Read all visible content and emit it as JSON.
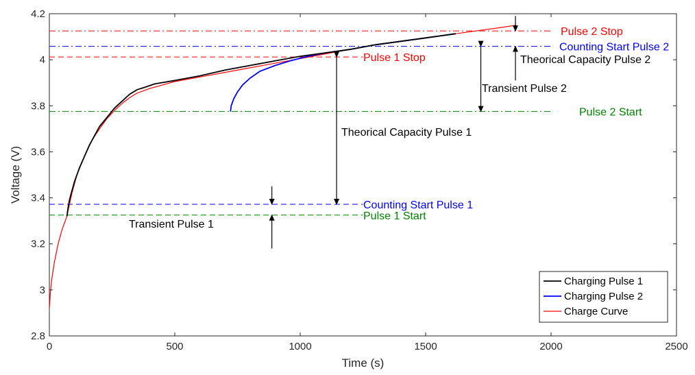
{
  "chart_data": {
    "type": "line",
    "xlabel": "Time (s)",
    "ylabel": "Voltage (V)",
    "xlim": [
      0,
      2500
    ],
    "ylim": [
      2.8,
      4.2
    ],
    "x_ticks": [
      "0",
      "500",
      "1000",
      "1500",
      "2000",
      "2500"
    ],
    "y_ticks": [
      "2.8",
      "3",
      "3.2",
      "3.4",
      "3.6",
      "3.8",
      "4",
      "4.2"
    ],
    "grid": false,
    "legend_position": "bottom-right",
    "colors": {
      "pulse1": "#000000",
      "pulse2": "#0000ff",
      "charge": "#ff0000",
      "green": "#008000",
      "blue": "#0000ff",
      "red": "#ff0000"
    },
    "series": [
      {
        "name": "Charging Pulse 1",
        "color": "#000000",
        "points": [
          [
            70,
            3.32
          ],
          [
            75,
            3.36
          ],
          [
            80,
            3.39
          ],
          [
            90,
            3.43
          ],
          [
            100,
            3.47
          ],
          [
            120,
            3.53
          ],
          [
            140,
            3.58
          ],
          [
            160,
            3.63
          ],
          [
            180,
            3.67
          ],
          [
            200,
            3.71
          ],
          [
            230,
            3.75
          ],
          [
            260,
            3.79
          ],
          [
            290,
            3.82
          ],
          [
            320,
            3.85
          ],
          [
            350,
            3.87
          ],
          [
            380,
            3.88
          ],
          [
            420,
            3.895
          ],
          [
            500,
            3.91
          ],
          [
            600,
            3.93
          ],
          [
            700,
            3.955
          ],
          [
            800,
            3.975
          ],
          [
            900,
            3.995
          ],
          [
            1000,
            4.015
          ],
          [
            1100,
            4.03
          ],
          [
            1200,
            4.045
          ],
          [
            1300,
            4.065
          ],
          [
            1400,
            4.08
          ],
          [
            1500,
            4.095
          ],
          [
            1600,
            4.11
          ],
          [
            1620,
            4.113
          ]
        ]
      },
      {
        "name": "Charging Pulse 2",
        "color": "#0000ff",
        "points": [
          [
            722,
            3.775
          ],
          [
            725,
            3.8
          ],
          [
            735,
            3.83
          ],
          [
            750,
            3.86
          ],
          [
            770,
            3.89
          ],
          [
            800,
            3.92
          ],
          [
            840,
            3.95
          ],
          [
            900,
            3.975
          ],
          [
            960,
            3.995
          ],
          [
            1030,
            4.015
          ],
          [
            1100,
            4.03
          ],
          [
            1200,
            4.045
          ],
          [
            1300,
            4.065
          ],
          [
            1400,
            4.08
          ],
          [
            1500,
            4.095
          ],
          [
            1600,
            4.11
          ],
          [
            1620,
            4.113
          ]
        ]
      },
      {
        "name": "Charge Curve",
        "color": "#ff0000",
        "points": [
          [
            0,
            2.92
          ],
          [
            5,
            3.0
          ],
          [
            10,
            3.05
          ],
          [
            20,
            3.12
          ],
          [
            35,
            3.2
          ],
          [
            50,
            3.26
          ],
          [
            70,
            3.32
          ],
          [
            90,
            3.42
          ],
          [
            110,
            3.5
          ],
          [
            140,
            3.58
          ],
          [
            170,
            3.65
          ],
          [
            200,
            3.7
          ],
          [
            230,
            3.745
          ],
          [
            260,
            3.78
          ],
          [
            290,
            3.81
          ],
          [
            320,
            3.835
          ],
          [
            350,
            3.855
          ],
          [
            400,
            3.875
          ],
          [
            450,
            3.89
          ],
          [
            500,
            3.905
          ],
          [
            600,
            3.925
          ],
          [
            700,
            3.945
          ],
          [
            800,
            3.965
          ],
          [
            900,
            3.985
          ],
          [
            1000,
            4.005
          ],
          [
            1100,
            4.025
          ],
          [
            1200,
            4.045
          ],
          [
            1300,
            4.065
          ],
          [
            1400,
            4.08
          ],
          [
            1500,
            4.095
          ],
          [
            1600,
            4.11
          ],
          [
            1700,
            4.125
          ],
          [
            1800,
            4.14
          ],
          [
            1860,
            4.15
          ]
        ]
      }
    ],
    "reference_lines": [
      {
        "label": "Pulse 2 Stop",
        "y": 4.125,
        "x0": 0,
        "x1": 2000,
        "color": "#ff0000",
        "style": "dashdot"
      },
      {
        "label": "Counting Start Pulse 2",
        "y": 4.058,
        "x0": 0,
        "x1": 2000,
        "color": "#0000ff",
        "style": "dashdot"
      },
      {
        "label": "Pulse 1 Stop",
        "y": 4.012,
        "x0": 0,
        "x1": 1250,
        "color": "#ff0000",
        "style": "dash"
      },
      {
        "label": "Pulse 2 Start",
        "y": 3.775,
        "x0": 0,
        "x1": 2000,
        "color": "#008000",
        "style": "dashdot"
      },
      {
        "label": "Counting Start Pulse 1",
        "y": 3.372,
        "x0": 0,
        "x1": 1250,
        "color": "#0000ff",
        "style": "dash"
      },
      {
        "label": "Pulse 1 Start",
        "y": 3.325,
        "x0": 0,
        "x1": 1250,
        "color": "#008000",
        "style": "dash"
      }
    ],
    "annotations": [
      {
        "label": "Theorical Capacity Pulse 1",
        "color": "#000000"
      },
      {
        "label": "Transient Pulse 1",
        "color": "#000000"
      },
      {
        "label": "Theorical Capacity Pulse 2",
        "color": "#000000"
      },
      {
        "label": "Transient Pulse 2",
        "color": "#000000"
      }
    ],
    "arrows": [
      {
        "x": 1145,
        "y0": 4.012,
        "y1": 3.372,
        "type": "double"
      },
      {
        "x": 887,
        "y0": 3.45,
        "y1": 3.372,
        "type": "down"
      },
      {
        "x": 887,
        "y0": 3.18,
        "y1": 3.325,
        "type": "up"
      },
      {
        "x": 1720,
        "y0": 4.058,
        "y1": 3.775,
        "type": "double"
      },
      {
        "x": 1858,
        "y0": 4.19,
        "y1": 4.125,
        "type": "down"
      },
      {
        "x": 1858,
        "y0": 3.91,
        "y1": 4.058,
        "type": "up"
      }
    ]
  }
}
